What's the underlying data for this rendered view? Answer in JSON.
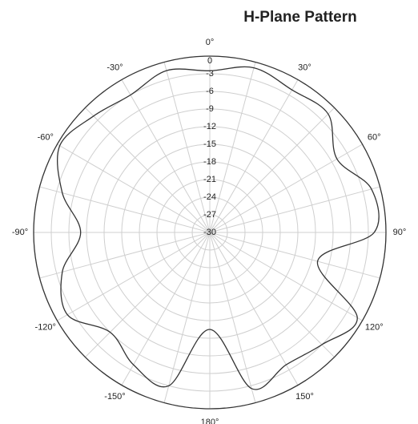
{
  "chart_data": {
    "type": "polar",
    "title": "H-Plane Pattern",
    "theta": [
      -165,
      -150,
      -135,
      -120,
      -105,
      -90,
      -75,
      -60,
      -45,
      -30,
      -15,
      0,
      15,
      30,
      45,
      60,
      75,
      90,
      105,
      120,
      135,
      150,
      165,
      180
    ],
    "values": [
      -3,
      -4,
      -6,
      -2,
      -4,
      -8,
      -4,
      -0.5,
      -2,
      -3,
      -1.5,
      -2.5,
      -1,
      -2,
      -1.5,
      -5,
      -1.5,
      -2,
      -11,
      -1,
      -3,
      -4,
      -2.5,
      -13.5
    ],
    "color": "#333333",
    "rlim": [
      -30,
      0
    ],
    "rticks": [
      0,
      -3,
      -6,
      -9,
      -12,
      -15,
      -18,
      -21,
      -24,
      -27,
      -30
    ],
    "theta_ticks": [
      {
        "value": 0,
        "label": "0°"
      },
      {
        "value": 30,
        "label": "30°"
      },
      {
        "value": 60,
        "label": "60°"
      },
      {
        "value": 90,
        "label": "90°"
      },
      {
        "value": 120,
        "label": "120°"
      },
      {
        "value": 150,
        "label": "150°"
      },
      {
        "value": 180,
        "label": "180°"
      },
      {
        "value": -150,
        "label": "-150°"
      },
      {
        "value": -120,
        "label": "-120°"
      },
      {
        "value": -90,
        "label": "-90°"
      },
      {
        "value": -60,
        "label": "-60°"
      },
      {
        "value": -30,
        "label": "-30°"
      }
    ],
    "theta_gridlines": [
      0,
      15,
      30,
      45,
      60,
      75,
      90,
      105,
      120,
      135,
      150,
      165,
      180,
      195,
      210,
      225,
      240,
      255,
      270,
      285,
      300,
      315,
      330,
      345
    ],
    "grid": true
  }
}
